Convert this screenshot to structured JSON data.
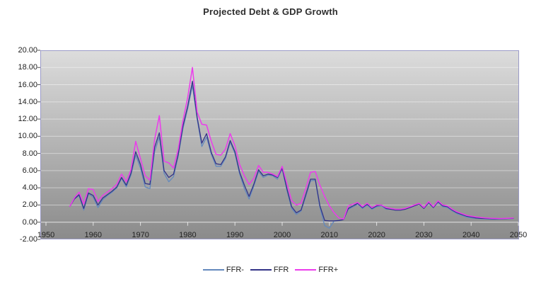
{
  "title": "Projected Debt & GDP Growth",
  "colors": {
    "canvas_bg": "#ffffff",
    "plot_bg_top": "#dcdcdc",
    "plot_bg_bottom": "#8b8b8b",
    "plot_border": "#9b9bc8",
    "gridline": "rgba(255,255,255,0.45)",
    "zero_axis": "rgba(255,255,255,0.75)",
    "axis_tick": "#555555",
    "label_text": "#222222",
    "title_text": "#2e2e2e"
  },
  "legend": {
    "position": "bottom-center",
    "items": [
      "FFR-",
      "FFR",
      "FFR+"
    ]
  },
  "chart_data": {
    "type": "line",
    "title": "Projected Debt & GDP Growth",
    "xlabel": "",
    "ylabel": "",
    "xlim": [
      1950,
      2050
    ],
    "ylim": [
      -2,
      20
    ],
    "xticks": [
      1950,
      1960,
      1970,
      1980,
      1990,
      2000,
      2010,
      2020,
      2030,
      2040,
      2050
    ],
    "yticks": [
      -2,
      0,
      2,
      4,
      6,
      8,
      10,
      12,
      14,
      16,
      18,
      20
    ],
    "ytick_format": "0.00",
    "grid": true,
    "legend_position": "bottom",
    "x": [
      1955,
      1956,
      1957,
      1958,
      1959,
      1960,
      1961,
      1962,
      1963,
      1964,
      1965,
      1966,
      1967,
      1968,
      1969,
      1970,
      1971,
      1972,
      1973,
      1974,
      1975,
      1976,
      1977,
      1978,
      1979,
      1980,
      1981,
      1982,
      1983,
      1984,
      1985,
      1986,
      1987,
      1988,
      1989,
      1990,
      1991,
      1992,
      1993,
      1994,
      1995,
      1996,
      1997,
      1998,
      1999,
      2000,
      2001,
      2002,
      2003,
      2004,
      2005,
      2006,
      2007,
      2008,
      2009,
      2010,
      2011,
      2012,
      2013,
      2014,
      2015,
      2016,
      2017,
      2018,
      2019,
      2020,
      2021,
      2022,
      2023,
      2024,
      2025,
      2026,
      2027,
      2028,
      2029,
      2030,
      2031,
      2032,
      2033,
      2034,
      2035,
      2036,
      2037,
      2038,
      2039,
      2040,
      2041,
      2042,
      2043,
      2044,
      2045,
      2046,
      2047,
      2048,
      2049
    ],
    "series": [
      {
        "name": "FFR-",
        "color": "#6389bd",
        "values": [
          1.8,
          2.7,
          3.1,
          1.4,
          3.3,
          2.9,
          1.7,
          2.6,
          3.1,
          3.5,
          4.0,
          5.1,
          4.1,
          5.5,
          7.8,
          6.3,
          4.1,
          3.9,
          8.2,
          9.9,
          5.7,
          4.7,
          5.3,
          7.7,
          10.9,
          13.2,
          15.9,
          12.0,
          8.8,
          9.9,
          7.9,
          6.5,
          6.5,
          7.4,
          9.3,
          8.0,
          5.6,
          3.9,
          2.7,
          4.2,
          5.9,
          5.2,
          5.5,
          5.4,
          5.0,
          6.2,
          3.7,
          1.6,
          0.9,
          1.3,
          3.0,
          4.8,
          4.9,
          1.7,
          -0.4,
          -0.7,
          0.15,
          0.2,
          0.3,
          1.5,
          1.8,
          2.1,
          1.6,
          2.0,
          1.5,
          1.8,
          1.9,
          1.5,
          1.5,
          1.4,
          1.4,
          1.5,
          1.7,
          1.9,
          2.1,
          1.6,
          2.2,
          1.7,
          2.3,
          1.8,
          1.7,
          1.3,
          1.0,
          0.8,
          0.6,
          0.5,
          0.45,
          0.4,
          0.38,
          0.35,
          0.34,
          0.35,
          0.38,
          0.4,
          0.42
        ]
      },
      {
        "name": "FFR",
        "color": "#333387",
        "values": [
          1.8,
          2.7,
          3.2,
          1.6,
          3.4,
          3.1,
          2.0,
          2.8,
          3.2,
          3.6,
          4.1,
          5.2,
          4.3,
          5.7,
          8.2,
          6.7,
          4.5,
          4.4,
          8.7,
          10.4,
          6.0,
          5.2,
          5.6,
          7.9,
          11.2,
          13.5,
          16.4,
          12.2,
          9.2,
          10.3,
          8.1,
          6.8,
          6.7,
          7.6,
          9.5,
          8.2,
          5.8,
          4.3,
          3.0,
          4.4,
          6.1,
          5.4,
          5.6,
          5.5,
          5.2,
          6.3,
          3.9,
          1.8,
          1.1,
          1.4,
          3.2,
          5.0,
          5.0,
          1.9,
          0.2,
          0.15,
          0.15,
          0.2,
          0.3,
          1.6,
          1.9,
          2.2,
          1.7,
          2.1,
          1.6,
          1.9,
          2.0,
          1.6,
          1.5,
          1.4,
          1.4,
          1.5,
          1.7,
          1.9,
          2.1,
          1.6,
          2.3,
          1.7,
          2.4,
          1.9,
          1.8,
          1.4,
          1.1,
          0.9,
          0.7,
          0.6,
          0.5,
          0.45,
          0.42,
          0.4,
          0.38,
          0.38,
          0.4,
          0.43,
          0.45
        ]
      },
      {
        "name": "FFR+",
        "color": "#ec3bec",
        "values": [
          1.8,
          2.8,
          3.5,
          2.1,
          3.9,
          3.8,
          2.4,
          3.1,
          3.5,
          3.9,
          4.4,
          5.6,
          4.7,
          6.1,
          9.4,
          7.4,
          5.4,
          4.9,
          9.6,
          12.4,
          7.1,
          6.9,
          6.3,
          8.5,
          11.8,
          14.5,
          18.0,
          12.8,
          11.4,
          11.3,
          9.4,
          7.9,
          7.8,
          8.5,
          10.3,
          8.9,
          6.7,
          5.4,
          4.4,
          5.1,
          6.6,
          5.8,
          5.8,
          5.6,
          5.3,
          6.5,
          4.5,
          2.5,
          2.0,
          2.2,
          3.9,
          5.8,
          5.9,
          4.3,
          3.0,
          1.9,
          1.1,
          0.5,
          0.35,
          1.9,
          2.1,
          2.3,
          1.8,
          2.2,
          1.7,
          2.0,
          2.0,
          1.7,
          1.6,
          1.5,
          1.5,
          1.6,
          1.8,
          2.0,
          2.2,
          1.7,
          2.4,
          1.8,
          2.5,
          2.0,
          1.9,
          1.5,
          1.2,
          1.0,
          0.8,
          0.7,
          0.6,
          0.55,
          0.5,
          0.46,
          0.44,
          0.42,
          0.44,
          0.46,
          0.48
        ]
      }
    ]
  }
}
